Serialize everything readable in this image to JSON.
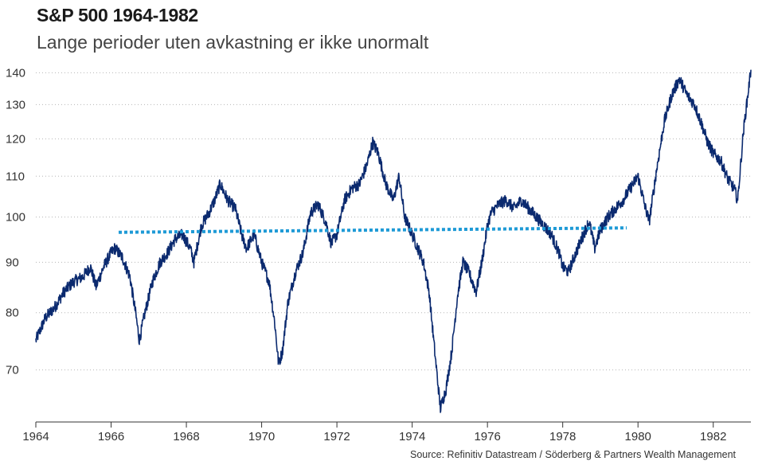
{
  "chart_data": {
    "type": "line",
    "title": "S&P 500 1964-1982",
    "subtitle": "Lange perioder uten avkastning er ikke unormalt",
    "source": "Source: Refinitiv Datastream / Söderberg & Partners Wealth Management",
    "y_scale": "log",
    "ylim": [
      62,
      143
    ],
    "xlim": [
      1964.0,
      1983.0
    ],
    "y_ticks": [
      70,
      80,
      90,
      100,
      110,
      120,
      130,
      140
    ],
    "x_ticks": [
      1964,
      1966,
      1968,
      1970,
      1972,
      1974,
      1976,
      1978,
      1980,
      1982
    ],
    "grid": "horizontal dotted",
    "colors": {
      "series": "#0b2a6f",
      "trend": "#1e9ad6"
    },
    "series": [
      {
        "x": [
          1964.0,
          1964.25,
          1964.5,
          1964.75,
          1965.0,
          1965.25,
          1965.45,
          1965.6,
          1965.8,
          1966.0,
          1966.1,
          1966.3,
          1966.5,
          1966.65,
          1966.75,
          1966.9,
          1967.1,
          1967.3,
          1967.5,
          1967.7,
          1967.9,
          1968.1,
          1968.2,
          1968.4,
          1968.6,
          1968.75,
          1968.9,
          1969.1,
          1969.3,
          1969.5,
          1969.6,
          1969.8,
          1970.0,
          1970.2,
          1970.35,
          1970.45,
          1970.55,
          1970.7,
          1970.9,
          1971.1,
          1971.3,
          1971.5,
          1971.7,
          1971.85,
          1972.0,
          1972.2,
          1972.4,
          1972.6,
          1972.8,
          1972.95,
          1973.1,
          1973.3,
          1973.5,
          1973.65,
          1973.8,
          1974.0,
          1974.15,
          1974.3,
          1974.45,
          1974.6,
          1974.75,
          1974.9,
          1975.05,
          1975.2,
          1975.35,
          1975.5,
          1975.7,
          1975.85,
          1976.0,
          1976.1,
          1976.3,
          1976.5,
          1976.7,
          1976.9,
          1977.1,
          1977.3,
          1977.5,
          1977.7,
          1977.9,
          1978.0,
          1978.15,
          1978.3,
          1978.5,
          1978.7,
          1978.85,
          1979.0,
          1979.2,
          1979.4,
          1979.6,
          1979.8,
          1980.0,
          1980.2,
          1980.3,
          1980.5,
          1980.7,
          1980.9,
          1981.1,
          1981.3,
          1981.5,
          1981.7,
          1981.85,
          1982.0,
          1982.2,
          1982.4,
          1982.55,
          1982.65,
          1982.8,
          1983.0
        ],
        "values": [
          75,
          79,
          81,
          84,
          86,
          87,
          89,
          85,
          89,
          92,
          93,
          91,
          87,
          80,
          75,
          80,
          86,
          90,
          92,
          95,
          96,
          93,
          90,
          98,
          101,
          104,
          108,
          104,
          102,
          95,
          93,
          96,
          90,
          86,
          78,
          71,
          73,
          82,
          88,
          92,
          101,
          103,
          99,
          94,
          96,
          104,
          107,
          108,
          113,
          119,
          116,
          108,
          104,
          110,
          100,
          96,
          93,
          90,
          84,
          73,
          64,
          67,
          73,
          83,
          90,
          88,
          84,
          90,
          98,
          101,
          103,
          104,
          102,
          104,
          102,
          100,
          98,
          96,
          92,
          89,
          88,
          91,
          95,
          99,
          93,
          97,
          100,
          102,
          104,
          107,
          110,
          102,
          99,
          112,
          125,
          133,
          138,
          133,
          130,
          124,
          119,
          116,
          114,
          109,
          107,
          104,
          122,
          141
        ]
      },
      {
        "x": [
          1966.2,
          1979.7
        ],
        "values": [
          96.5,
          97.5
        ]
      }
    ]
  }
}
